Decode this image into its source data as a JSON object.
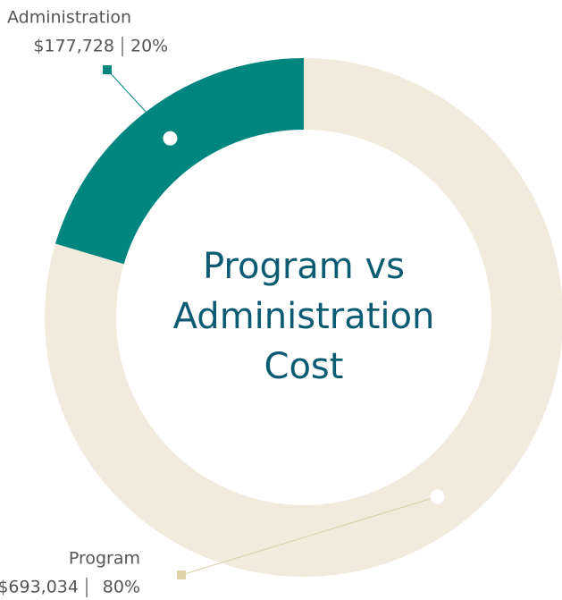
{
  "chart_data": {
    "type": "donut",
    "title": "Program vs Administration Cost",
    "categories": [
      "Program",
      "Administration"
    ],
    "values": [
      693034,
      177728
    ],
    "value_labels": [
      "$693,034",
      "$177,728"
    ],
    "percent_labels": [
      "80%",
      "20%"
    ],
    "colors": [
      "#f0ebdc",
      "#00857f"
    ]
  }
}
